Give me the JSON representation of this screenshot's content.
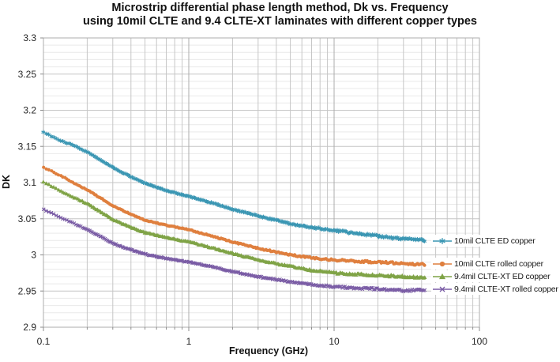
{
  "title": {
    "line1": "Microstrip differential phase length method, Dk vs. Frequency",
    "line2": "using 10mil CLTE and 9.4 CLTE-XT laminates with different copper types"
  },
  "chart_data": {
    "type": "line",
    "x_axis": {
      "label": "Frequency (GHz)",
      "scale": "log",
      "min": 0.1,
      "max": 100,
      "tick_values": [
        0.1,
        1,
        10,
        100
      ],
      "tick_labels": [
        "0.1",
        "1",
        "10",
        "100"
      ],
      "minor_grid": "log-decades"
    },
    "y_axis": {
      "label": "DK",
      "min": 2.9,
      "max": 3.3,
      "major_step": 0.05,
      "minor_step": 0.01,
      "tick_values": [
        3.3,
        3.25,
        3.2,
        3.15,
        3.1,
        3.05,
        3.0,
        2.95,
        2.9
      ],
      "tick_labels": [
        "3.3",
        "3.25",
        "3.2",
        "3.15",
        "3.1",
        "3.05",
        "3",
        "2.95",
        "2.9"
      ]
    },
    "legend_position": "right",
    "data_end_ghz": 42,
    "series": [
      {
        "name": "10mil CLTE ED copper",
        "color": "#3A96B3",
        "marker": "asterisk",
        "points": [
          [
            0.1,
            3.17
          ],
          [
            0.13,
            3.158
          ],
          [
            0.16,
            3.152
          ],
          [
            0.2,
            3.142
          ],
          [
            0.25,
            3.131
          ],
          [
            0.3,
            3.121
          ],
          [
            0.4,
            3.108
          ],
          [
            0.5,
            3.099
          ],
          [
            0.7,
            3.089
          ],
          [
            1,
            3.081
          ],
          [
            1.5,
            3.071
          ],
          [
            2,
            3.063
          ],
          [
            3,
            3.054
          ],
          [
            5,
            3.043
          ],
          [
            7,
            3.038
          ],
          [
            10,
            3.034
          ],
          [
            15,
            3.029
          ],
          [
            20,
            3.026
          ],
          [
            30,
            3.022
          ],
          [
            42,
            3.02
          ]
        ]
      },
      {
        "name": "10mil CLTE rolled copper",
        "color": "#DF7F3E",
        "marker": "circle",
        "points": [
          [
            0.1,
            3.121
          ],
          [
            0.13,
            3.11
          ],
          [
            0.16,
            3.1
          ],
          [
            0.2,
            3.09
          ],
          [
            0.25,
            3.078
          ],
          [
            0.3,
            3.068
          ],
          [
            0.4,
            3.056
          ],
          [
            0.5,
            3.048
          ],
          [
            0.7,
            3.041
          ],
          [
            1,
            3.035
          ],
          [
            1.5,
            3.025
          ],
          [
            2,
            3.018
          ],
          [
            3,
            3.009
          ],
          [
            5,
            3.0
          ],
          [
            7,
            2.996
          ],
          [
            10,
            2.993
          ],
          [
            15,
            2.991
          ],
          [
            20,
            2.99
          ],
          [
            30,
            2.988
          ],
          [
            42,
            2.987
          ]
        ]
      },
      {
        "name": "9.4mil CLTE-XT ED copper",
        "color": "#7FA346",
        "marker": "triangle",
        "points": [
          [
            0.1,
            3.101
          ],
          [
            0.13,
            3.089
          ],
          [
            0.16,
            3.08
          ],
          [
            0.2,
            3.071
          ],
          [
            0.25,
            3.059
          ],
          [
            0.3,
            3.049
          ],
          [
            0.4,
            3.038
          ],
          [
            0.5,
            3.031
          ],
          [
            0.7,
            3.024
          ],
          [
            1,
            3.018
          ],
          [
            1.5,
            3.009
          ],
          [
            2,
            3.002
          ],
          [
            3,
            2.993
          ],
          [
            5,
            2.984
          ],
          [
            7,
            2.979
          ],
          [
            10,
            2.975
          ],
          [
            15,
            2.973
          ],
          [
            20,
            2.972
          ],
          [
            30,
            2.97
          ],
          [
            42,
            2.969
          ]
        ]
      },
      {
        "name": "9.4mil CLTE-XT rolled copper",
        "color": "#7A5CA5",
        "marker": "x",
        "points": [
          [
            0.1,
            3.063
          ],
          [
            0.13,
            3.052
          ],
          [
            0.16,
            3.044
          ],
          [
            0.2,
            3.035
          ],
          [
            0.25,
            3.025
          ],
          [
            0.3,
            3.016
          ],
          [
            0.4,
            3.007
          ],
          [
            0.5,
            3.001
          ],
          [
            0.7,
            2.995
          ],
          [
            1,
            2.99
          ],
          [
            1.5,
            2.983
          ],
          [
            2,
            2.977
          ],
          [
            3,
            2.97
          ],
          [
            5,
            2.963
          ],
          [
            7,
            2.959
          ],
          [
            10,
            2.956
          ],
          [
            15,
            2.954
          ],
          [
            20,
            2.953
          ],
          [
            30,
            2.951
          ],
          [
            42,
            2.951
          ]
        ]
      }
    ]
  },
  "colors": {
    "grid_major": "#C6C6C6",
    "grid_minor": "#E9E9E9",
    "grid_decade": "#ACACAC",
    "axis_border": "#ACACAC",
    "tick_text": "#262626"
  }
}
